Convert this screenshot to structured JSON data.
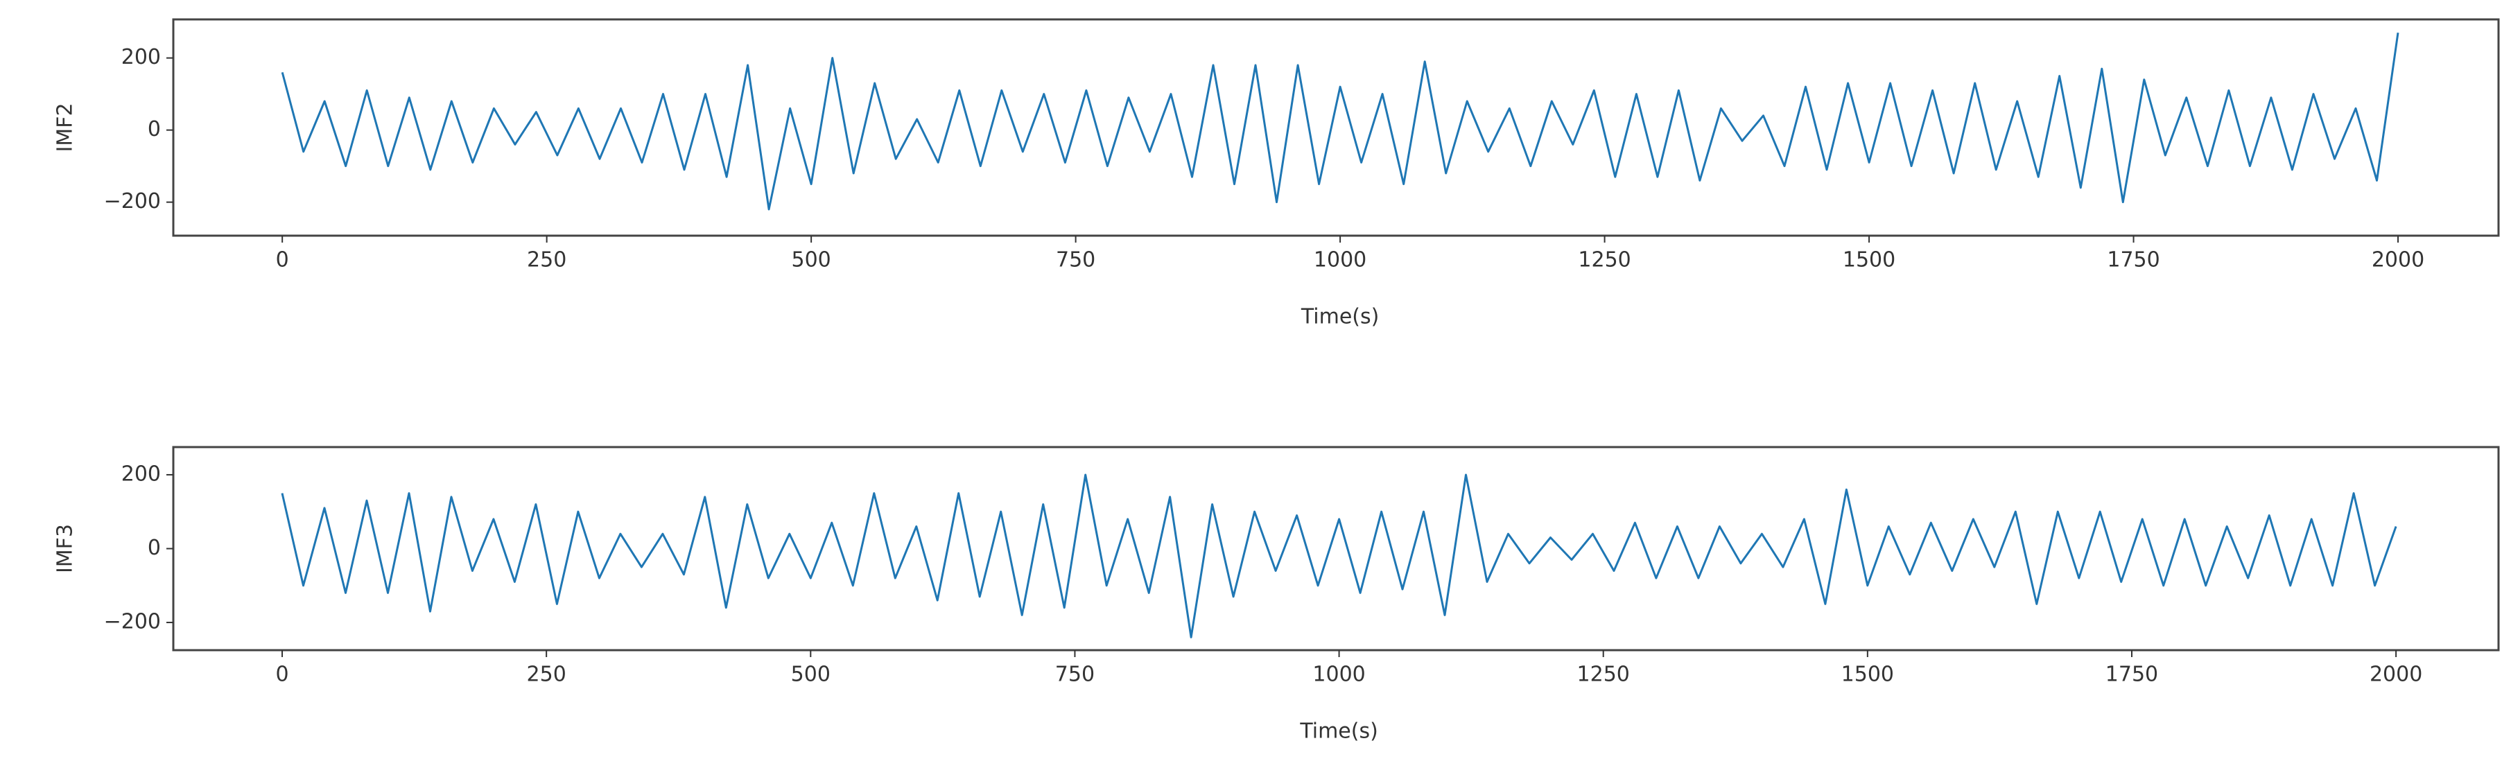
{
  "chart_data": [
    {
      "type": "line",
      "x_label": "Time(s)",
      "y_label": "IMF2",
      "x": [
        0,
        20,
        40,
        60,
        80,
        100,
        120,
        140,
        160,
        180,
        200,
        220,
        240,
        260,
        280,
        300,
        320,
        340,
        360,
        380,
        400,
        420,
        440,
        460,
        480,
        500,
        520,
        540,
        560,
        580,
        600,
        620,
        640,
        660,
        680,
        700,
        720,
        740,
        760,
        780,
        800,
        820,
        840,
        860,
        880,
        900,
        920,
        940,
        960,
        980,
        1000,
        1020,
        1040,
        1060,
        1080,
        1100,
        1120,
        1140,
        1160,
        1180,
        1200,
        1220,
        1240,
        1260,
        1280,
        1300,
        1320,
        1340,
        1360,
        1380,
        1400,
        1420,
        1440,
        1460,
        1480,
        1500,
        1520,
        1540,
        1560,
        1580,
        1600,
        1620,
        1640,
        1660,
        1680,
        1700,
        1720,
        1740,
        1760,
        1780,
        1800,
        1820,
        1840,
        1860,
        1880,
        1900,
        1920,
        1940,
        1960,
        1980,
        2000
      ],
      "series": [
        {
          "color": "#1f77b4",
          "values": [
            160,
            -60,
            80,
            -100,
            110,
            -100,
            90,
            -110,
            80,
            -90,
            60,
            -40,
            50,
            -70,
            60,
            -80,
            60,
            -90,
            100,
            -110,
            100,
            -130,
            180,
            -220,
            60,
            -150,
            200,
            -120,
            130,
            -80,
            30,
            -90,
            110,
            -100,
            110,
            -60,
            100,
            -90,
            110,
            -100,
            90,
            -60,
            100,
            -130,
            180,
            -150,
            180,
            -200,
            180,
            -150,
            120,
            -90,
            100,
            -150,
            190,
            -120,
            80,
            -60,
            60,
            -100,
            80,
            -40,
            110,
            -130,
            100,
            -130,
            110,
            -140,
            60,
            -30,
            40,
            -100,
            120,
            -110,
            130,
            -90,
            130,
            -100,
            110,
            -120,
            130,
            -110,
            80,
            -130,
            150,
            -160,
            170,
            -200,
            140,
            -70,
            90,
            -100,
            110,
            -100,
            90,
            -110,
            100,
            -80,
            60,
            -140,
            270
          ]
        }
      ],
      "xlim": [
        -103,
        2095
      ],
      "ylim": [
        -293,
        307
      ],
      "xticks": [
        0,
        250,
        500,
        750,
        1000,
        1250,
        1500,
        1750,
        2000
      ],
      "yticks": [
        {
          "value": -200,
          "label": "−200"
        },
        0,
        200
      ]
    },
    {
      "type": "line",
      "x_label": "Time(s)",
      "y_label": "IMF3",
      "x": [
        0,
        20,
        40,
        60,
        80,
        100,
        120,
        140,
        160,
        180,
        200,
        220,
        240,
        260,
        280,
        300,
        320,
        340,
        360,
        380,
        400,
        420,
        440,
        460,
        480,
        500,
        520,
        540,
        560,
        580,
        600,
        620,
        640,
        660,
        680,
        700,
        720,
        740,
        760,
        780,
        800,
        820,
        840,
        860,
        880,
        900,
        920,
        940,
        960,
        980,
        1000,
        1020,
        1040,
        1060,
        1080,
        1100,
        1120,
        1140,
        1160,
        1180,
        1200,
        1220,
        1240,
        1260,
        1280,
        1300,
        1320,
        1340,
        1360,
        1380,
        1400,
        1420,
        1440,
        1460,
        1480,
        1500,
        1520,
        1540,
        1560,
        1580,
        1600,
        1620,
        1640,
        1660,
        1680,
        1700,
        1720,
        1740,
        1760,
        1780,
        1800,
        1820,
        1840,
        1860,
        1880,
        1900,
        1920,
        1940,
        1960,
        1980,
        2000
      ],
      "series": [
        {
          "color": "#1f77b4",
          "values": [
            150,
            -100,
            110,
            -120,
            130,
            -120,
            150,
            -170,
            140,
            -60,
            80,
            -90,
            120,
            -150,
            100,
            -80,
            40,
            -50,
            40,
            -70,
            140,
            -160,
            120,
            -80,
            40,
            -80,
            70,
            -100,
            150,
            -80,
            60,
            -140,
            150,
            -130,
            100,
            -180,
            120,
            -160,
            200,
            -100,
            80,
            -120,
            140,
            -240,
            120,
            -130,
            100,
            -60,
            90,
            -100,
            80,
            -120,
            100,
            -110,
            100,
            -180,
            200,
            -90,
            40,
            -40,
            30,
            -30,
            40,
            -60,
            70,
            -80,
            60,
            -80,
            60,
            -40,
            40,
            -50,
            80,
            -150,
            160,
            -100,
            60,
            -70,
            70,
            -60,
            80,
            -50,
            100,
            -150,
            100,
            -80,
            100,
            -90,
            80,
            -100,
            80,
            -100,
            60,
            -80,
            90,
            -100,
            80,
            -100,
            150,
            -100,
            60
          ]
        }
      ],
      "xlim": [
        -103,
        2097
      ],
      "ylim": [
        -275,
        275
      ],
      "xticks": [
        0,
        250,
        500,
        750,
        1000,
        1250,
        1500,
        1750,
        2000
      ],
      "yticks": [
        {
          "value": -200,
          "label": "−200"
        },
        0,
        200
      ]
    }
  ]
}
